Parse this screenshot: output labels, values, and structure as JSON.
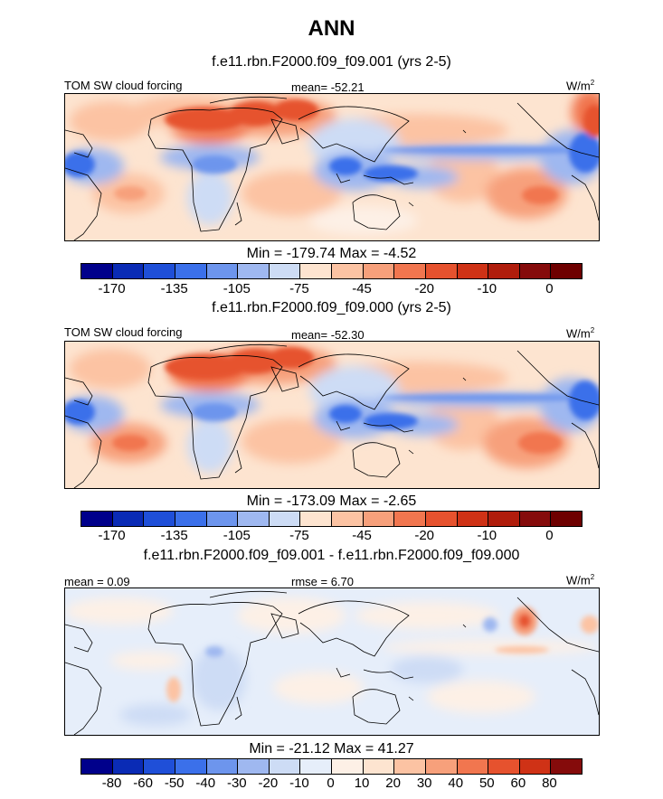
{
  "title": "ANN",
  "panels": [
    {
      "case_title": "f.e11.rbn.F2000.f09_f09.001 (yrs 2-5)",
      "left_label": "TOM SW cloud forcing",
      "center_label": "mean= -52.21",
      "units_base": "W/m",
      "units_exp": "2",
      "minmax": "Min = -179.74 Max =  -4.52",
      "stats": {
        "mean": -52.21,
        "min": -179.74,
        "max": -4.52
      }
    },
    {
      "case_title": "f.e11.rbn.F2000.f09_f09.000 (yrs 2-5)",
      "left_label": "TOM SW cloud forcing",
      "center_label": "mean= -52.30",
      "units_base": "W/m",
      "units_exp": "2",
      "minmax": "Min = -173.09 Max =  -2.65",
      "stats": {
        "mean": -52.3,
        "min": -173.09,
        "max": -2.65
      }
    },
    {
      "case_title": "f.e11.rbn.F2000.f09_f09.001 - f.e11.rbn.F2000.f09_f09.000",
      "left_label": "mean =   0.09",
      "center_label": "rmse =   6.70",
      "units_base": "W/m",
      "units_exp": "2",
      "minmax": "Min = -21.12 Max =  41.27",
      "stats": {
        "mean": 0.09,
        "rmse": 6.7,
        "min": -21.12,
        "max": 41.27
      }
    }
  ],
  "colorbar_abs": {
    "colors": [
      "#00008b",
      "#0a2bb5",
      "#1f4fd8",
      "#3b70ea",
      "#6d95ed",
      "#9fb8f0",
      "#cddcf5",
      "#fde4d0",
      "#fcc3a3",
      "#f7a07b",
      "#f1764f",
      "#e6522e",
      "#cf3216",
      "#b01d0c",
      "#850b0b",
      "#6e0000"
    ],
    "tick_labels": [
      "-170",
      "-135",
      "-105",
      "-75",
      "-45",
      "-20",
      "-10",
      "0"
    ]
  },
  "colorbar_diff": {
    "colors": [
      "#00008b",
      "#0a2bb5",
      "#1f4fd8",
      "#3b70ea",
      "#6d95ed",
      "#9fb8f0",
      "#cddcf5",
      "#e6eefa",
      "#fdf0e6",
      "#fde4d0",
      "#fcc3a3",
      "#f7a07b",
      "#f1764f",
      "#e6522e",
      "#cf3216",
      "#850b0b"
    ],
    "tick_labels": [
      "-80",
      "-60",
      "-50",
      "-40",
      "-30",
      "-20",
      "-10",
      "0",
      "10",
      "20",
      "30",
      "40",
      "50",
      "60",
      "80"
    ]
  },
  "chart_data": [
    {
      "type": "heatmap",
      "title": "ANN",
      "subtitle": "f.e11.rbn.F2000.f09_f09.001 (yrs 2-5)",
      "variable": "TOM SW cloud forcing",
      "units": "W/m2",
      "mean": -52.21,
      "min": -179.74,
      "max": -4.52,
      "colorbar_levels": [
        -170,
        -150,
        -135,
        -120,
        -105,
        -90,
        -75,
        -60,
        -45,
        -30,
        -20,
        -15,
        -10,
        -5,
        0
      ]
    },
    {
      "type": "heatmap",
      "subtitle": "f.e11.rbn.F2000.f09_f09.000 (yrs 2-5)",
      "variable": "TOM SW cloud forcing",
      "units": "W/m2",
      "mean": -52.3,
      "min": -173.09,
      "max": -2.65,
      "colorbar_levels": [
        -170,
        -150,
        -135,
        -120,
        -105,
        -90,
        -75,
        -60,
        -45,
        -30,
        -20,
        -15,
        -10,
        -5,
        0
      ]
    },
    {
      "type": "heatmap",
      "subtitle": "f.e11.rbn.F2000.f09_f09.001 - f.e11.rbn.F2000.f09_f09.000",
      "units": "W/m2",
      "mean": 0.09,
      "rmse": 6.7,
      "min": -21.12,
      "max": 41.27,
      "colorbar_levels": [
        -80,
        -60,
        -50,
        -40,
        -30,
        -20,
        -10,
        0,
        10,
        20,
        30,
        40,
        50,
        60,
        80
      ]
    }
  ]
}
